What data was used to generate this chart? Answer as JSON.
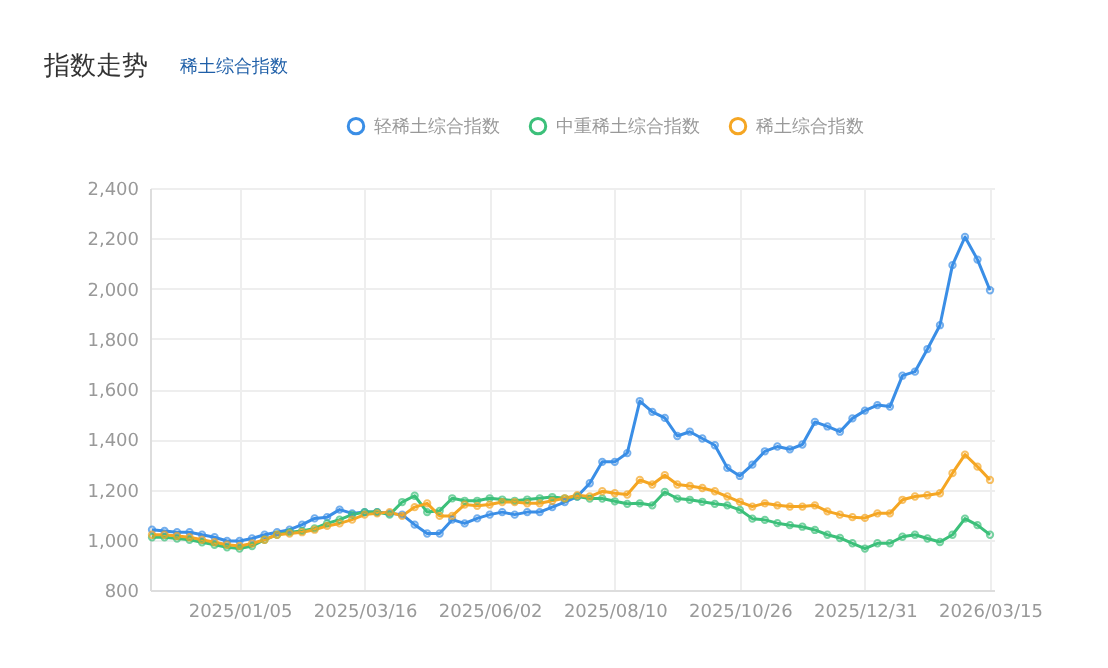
{
  "chart_data": {
    "type": "line",
    "title": "指数走势",
    "subtitle": "稀土综合指数",
    "categories": [
      null,
      null,
      null,
      null,
      null,
      null,
      null,
      "2025/01/05",
      null,
      null,
      null,
      null,
      null,
      null,
      null,
      null,
      null,
      "2025/03/16",
      null,
      null,
      null,
      null,
      null,
      null,
      null,
      null,
      null,
      "2025/06/02",
      null,
      null,
      null,
      null,
      null,
      null,
      null,
      null,
      null,
      "2025/08/10",
      null,
      null,
      null,
      null,
      null,
      null,
      null,
      null,
      null,
      "2025/10/26",
      null,
      null,
      null,
      null,
      null,
      null,
      null,
      null,
      null,
      "2025/12/31",
      null,
      null,
      null,
      null,
      null,
      null,
      null,
      null,
      null,
      "2026/03/15"
    ],
    "series": [
      {
        "name": "轻稀土综合指数",
        "color": "#3a8ee6",
        "values": [
          1040,
          1035,
          1030,
          1030,
          1020,
          1010,
          995,
          995,
          1005,
          1020,
          1030,
          1040,
          1060,
          1085,
          1090,
          1120,
          1105,
          1110,
          1110,
          1105,
          1100,
          1060,
          1025,
          1025,
          1080,
          1065,
          1085,
          1100,
          1110,
          1100,
          1110,
          1110,
          1130,
          1150,
          1172,
          1225,
          1310,
          1310,
          1345,
          1552,
          1509,
          1485,
          1413,
          1430,
          1403,
          1376,
          1286,
          1254,
          1299,
          1352,
          1371,
          1360,
          1379,
          1469,
          1451,
          1430,
          1483,
          1514,
          1536,
          1530,
          1653,
          1669,
          1759,
          1854,
          2093,
          2205,
          2115,
          1993
        ]
      },
      {
        "name": "中重稀土综合指数",
        "color": "#3cc07a",
        "values": [
          1010,
          1010,
          1005,
          1000,
          990,
          980,
          970,
          965,
          975,
          1000,
          1020,
          1030,
          1035,
          1045,
          1065,
          1080,
          1100,
          1110,
          1110,
          1100,
          1150,
          1175,
          1110,
          1115,
          1165,
          1155,
          1155,
          1165,
          1160,
          1155,
          1160,
          1165,
          1170,
          1165,
          1172,
          1164,
          1164,
          1153,
          1143,
          1145,
          1137,
          1190,
          1164,
          1159,
          1151,
          1143,
          1137,
          1119,
          1084,
          1079,
          1066,
          1058,
          1052,
          1039,
          1020,
          1007,
          986,
          965,
          986,
          986,
          1012,
          1020,
          1005,
          991,
          1020,
          1084,
          1058,
          1020
        ]
      },
      {
        "name": "稀土综合指数",
        "color": "#f5a623",
        "values": [
          1020,
          1020,
          1015,
          1010,
          1000,
          990,
          980,
          975,
          985,
          1000,
          1020,
          1025,
          1030,
          1040,
          1055,
          1065,
          1080,
          1100,
          1105,
          1110,
          1095,
          1130,
          1145,
          1095,
          1095,
          1140,
          1135,
          1140,
          1150,
          1150,
          1145,
          1145,
          1155,
          1165,
          1177,
          1172,
          1193,
          1185,
          1180,
          1238,
          1220,
          1257,
          1220,
          1214,
          1206,
          1193,
          1172,
          1151,
          1132,
          1145,
          1137,
          1132,
          1132,
          1137,
          1113,
          1100,
          1090,
          1087,
          1105,
          1105,
          1159,
          1172,
          1177,
          1185,
          1265,
          1339,
          1291,
          1238
        ]
      }
    ],
    "ylim": [
      800,
      2400
    ],
    "yticks": [
      {
        "value": 800,
        "label": "800"
      },
      {
        "value": 1000,
        "label": "1,000"
      },
      {
        "value": 1200,
        "label": "1,200"
      },
      {
        "value": 1400,
        "label": "1,400"
      },
      {
        "value": 1600,
        "label": "1,600"
      },
      {
        "value": 1800,
        "label": "1,800"
      },
      {
        "value": 2000,
        "label": "2,000"
      },
      {
        "value": 2200,
        "label": "2,200"
      },
      {
        "value": 2400,
        "label": "2,400"
      }
    ],
    "grid": true,
    "legend": "top",
    "marker": "circle",
    "line_style": "solid"
  }
}
